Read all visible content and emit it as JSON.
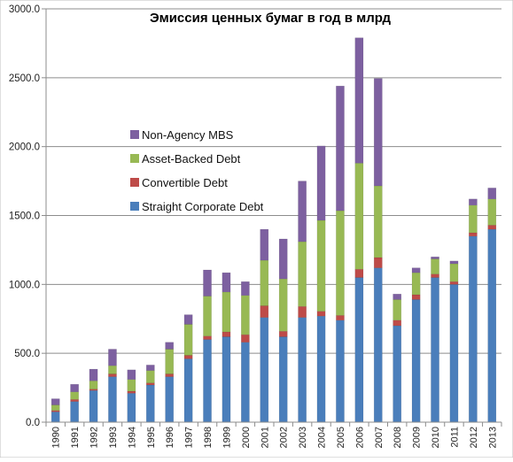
{
  "chart_data": {
    "type": "bar",
    "stacked": true,
    "title": "Эмиссия ценных бумаг в год в млрд",
    "xlabel": "",
    "ylabel": "",
    "ylim": [
      0,
      3000
    ],
    "yticks": [
      "0.0",
      "500.0",
      "1000.0",
      "1500.0",
      "2000.0",
      "2500.0",
      "3000.0"
    ],
    "grid": true,
    "legend_position": "center-left",
    "categories": [
      "1990",
      "1991",
      "1992",
      "1993",
      "1994",
      "1995",
      "1996",
      "1997",
      "1998",
      "1999",
      "2000",
      "2001",
      "2002",
      "2003",
      "2004",
      "2005",
      "2006",
      "2007",
      "2008",
      "2009",
      "2010",
      "2011",
      "2012",
      "2013"
    ],
    "series": [
      {
        "name": "Straight Corporate Debt",
        "color": "#4a7ebb",
        "values": [
          75,
          150,
          230,
          330,
          210,
          270,
          330,
          460,
          600,
          620,
          580,
          760,
          620,
          760,
          770,
          740,
          1050,
          1120,
          700,
          890,
          1050,
          1000,
          1350,
          1400
        ]
      },
      {
        "name": "Convertible Debt",
        "color": "#be4b48",
        "values": [
          10,
          15,
          10,
          20,
          15,
          15,
          20,
          25,
          25,
          35,
          55,
          85,
          40,
          80,
          35,
          35,
          60,
          75,
          40,
          35,
          25,
          20,
          25,
          30
        ]
      },
      {
        "name": "Asset-Backed Debt",
        "color": "#98b954",
        "values": [
          40,
          55,
          60,
          60,
          85,
          90,
          180,
          225,
          290,
          290,
          285,
          330,
          380,
          470,
          660,
          760,
          770,
          520,
          150,
          160,
          110,
          130,
          200,
          190
        ]
      },
      {
        "name": "Non-Agency MBS",
        "color": "#7d60a0",
        "values": [
          45,
          55,
          85,
          120,
          70,
          40,
          50,
          70,
          190,
          140,
          100,
          225,
          290,
          440,
          540,
          905,
          910,
          780,
          40,
          35,
          15,
          20,
          45,
          80
        ]
      }
    ]
  }
}
